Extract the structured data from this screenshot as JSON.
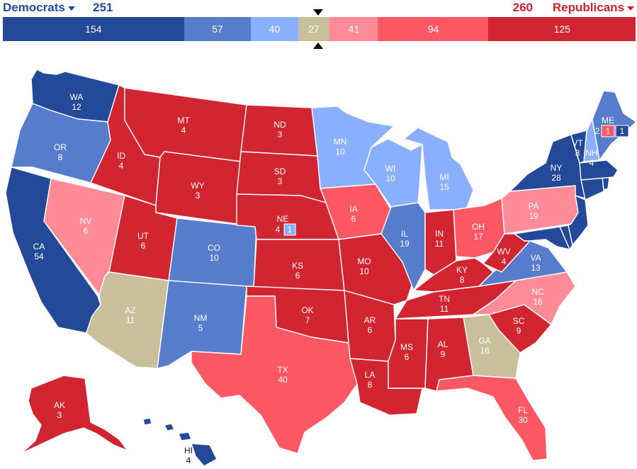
{
  "header": {
    "dem_label": "Democrats",
    "rep_label": "Republicans",
    "dem_total": "251",
    "rep_total": "260"
  },
  "bar": [
    {
      "value": "154",
      "color": "#244999"
    },
    {
      "value": "57",
      "color": "#577ccc"
    },
    {
      "value": "40",
      "color": "#8aafff"
    },
    {
      "value": "27",
      "color": "#c9c09b"
    },
    {
      "value": "41",
      "color": "#ff8b98"
    },
    {
      "value": "94",
      "color": "#ff5865"
    },
    {
      "value": "125",
      "color": "#d22532"
    }
  ],
  "colors": {
    "safe_d": "#244999",
    "likely_d": "#577ccc",
    "lean_d": "#8aafff",
    "tossup": "#c9c09b",
    "lean_r": "#ff8b98",
    "likely_r": "#ff5865",
    "safe_r": "#d22532"
  },
  "states": [
    {
      "abbr": "WA",
      "ev": "12",
      "rating": "safe_d"
    },
    {
      "abbr": "OR",
      "ev": "8",
      "rating": "likely_d"
    },
    {
      "abbr": "CA",
      "ev": "54",
      "rating": "safe_d"
    },
    {
      "abbr": "NV",
      "ev": "6",
      "rating": "lean_r"
    },
    {
      "abbr": "ID",
      "ev": "4",
      "rating": "safe_r"
    },
    {
      "abbr": "MT",
      "ev": "4",
      "rating": "safe_r"
    },
    {
      "abbr": "WY",
      "ev": "3",
      "rating": "safe_r"
    },
    {
      "abbr": "UT",
      "ev": "6",
      "rating": "safe_r"
    },
    {
      "abbr": "AZ",
      "ev": "11",
      "rating": "tossup"
    },
    {
      "abbr": "CO",
      "ev": "10",
      "rating": "likely_d"
    },
    {
      "abbr": "NM",
      "ev": "5",
      "rating": "likely_d"
    },
    {
      "abbr": "ND",
      "ev": "3",
      "rating": "safe_r"
    },
    {
      "abbr": "SD",
      "ev": "3",
      "rating": "safe_r"
    },
    {
      "abbr": "NE",
      "ev": "4",
      "rating": "safe_r"
    },
    {
      "abbr": "KS",
      "ev": "6",
      "rating": "safe_r"
    },
    {
      "abbr": "OK",
      "ev": "7",
      "rating": "safe_r"
    },
    {
      "abbr": "TX",
      "ev": "40",
      "rating": "likely_r"
    },
    {
      "abbr": "MN",
      "ev": "10",
      "rating": "lean_d"
    },
    {
      "abbr": "IA",
      "ev": "6",
      "rating": "likely_r"
    },
    {
      "abbr": "MO",
      "ev": "10",
      "rating": "safe_r"
    },
    {
      "abbr": "AR",
      "ev": "6",
      "rating": "safe_r"
    },
    {
      "abbr": "LA",
      "ev": "8",
      "rating": "safe_r"
    },
    {
      "abbr": "WI",
      "ev": "10",
      "rating": "lean_d"
    },
    {
      "abbr": "IL",
      "ev": "19",
      "rating": "likely_d"
    },
    {
      "abbr": "MI",
      "ev": "15",
      "rating": "lean_d"
    },
    {
      "abbr": "IN",
      "ev": "11",
      "rating": "safe_r"
    },
    {
      "abbr": "OH",
      "ev": "17",
      "rating": "likely_r"
    },
    {
      "abbr": "KY",
      "ev": "8",
      "rating": "safe_r"
    },
    {
      "abbr": "TN",
      "ev": "11",
      "rating": "safe_r"
    },
    {
      "abbr": "MS",
      "ev": "6",
      "rating": "safe_r"
    },
    {
      "abbr": "AL",
      "ev": "9",
      "rating": "safe_r"
    },
    {
      "abbr": "GA",
      "ev": "16",
      "rating": "tossup"
    },
    {
      "abbr": "FL",
      "ev": "30",
      "rating": "likely_r"
    },
    {
      "abbr": "SC",
      "ev": "9",
      "rating": "safe_r"
    },
    {
      "abbr": "NC",
      "ev": "16",
      "rating": "lean_r"
    },
    {
      "abbr": "VA",
      "ev": "13",
      "rating": "likely_d"
    },
    {
      "abbr": "WV",
      "ev": "4",
      "rating": "safe_r"
    },
    {
      "abbr": "PA",
      "ev": "19",
      "rating": "lean_r"
    },
    {
      "abbr": "NY",
      "ev": "28",
      "rating": "safe_d"
    },
    {
      "abbr": "VT",
      "ev": "3",
      "rating": "safe_d"
    },
    {
      "abbr": "NH",
      "ev": "4",
      "rating": "lean_d"
    },
    {
      "abbr": "ME",
      "ev": "2",
      "rating": "likely_d"
    },
    {
      "abbr": "AK",
      "ev": "3",
      "rating": "safe_r"
    },
    {
      "abbr": "HI",
      "ev": "4",
      "rating": "safe_d"
    }
  ],
  "districts": {
    "ne_cd": "1",
    "me_cd_1": "1",
    "me_cd_2": "1"
  }
}
